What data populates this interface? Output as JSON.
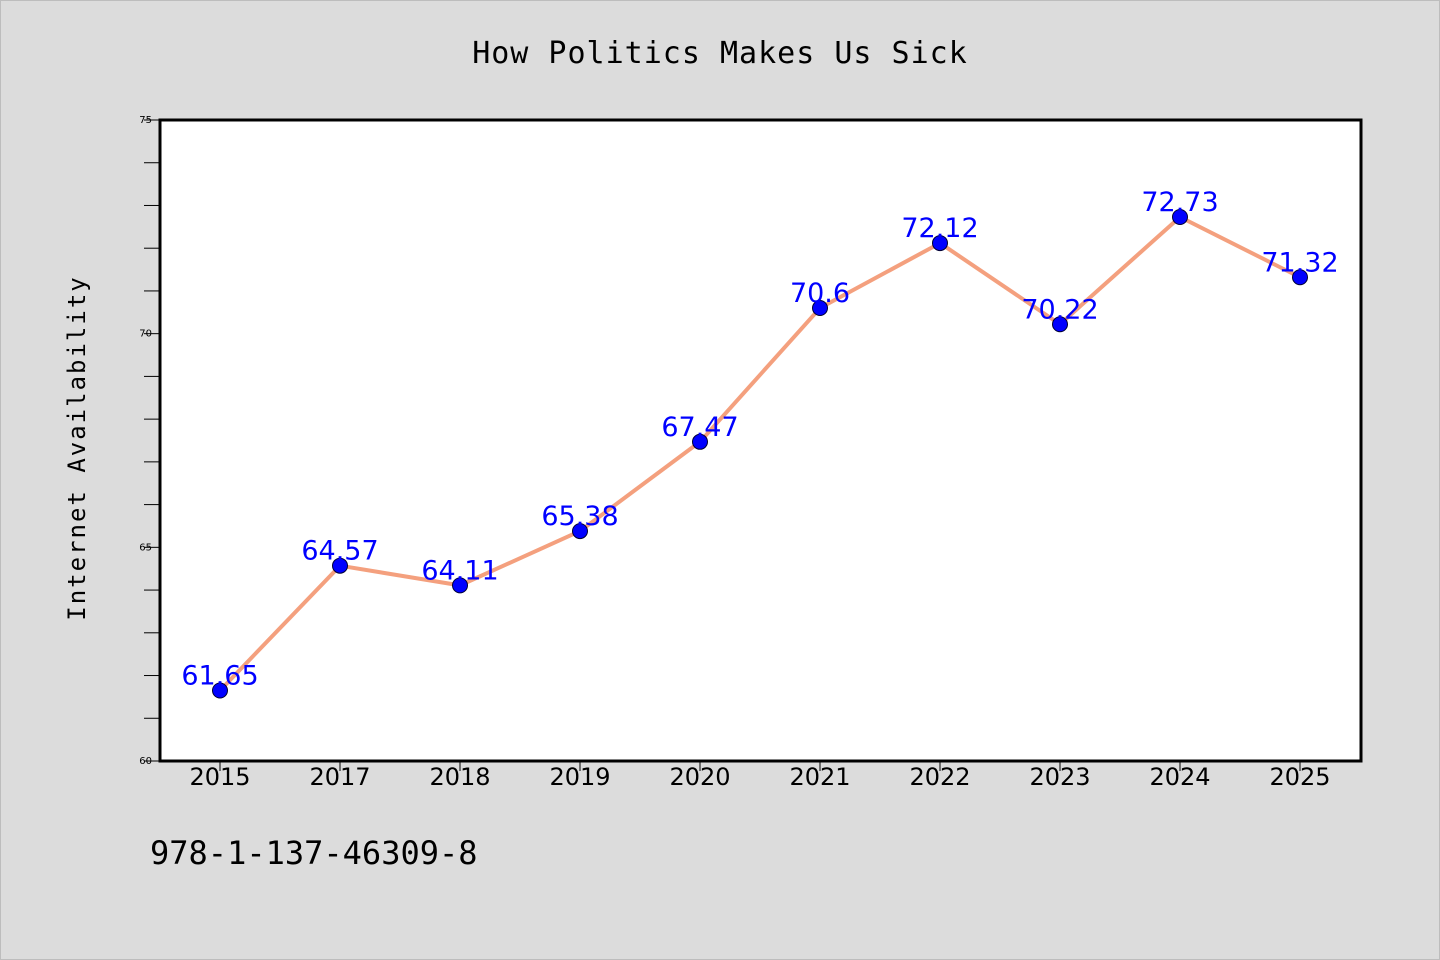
{
  "chart_data": {
    "type": "line",
    "title": "How Politics Makes Us Sick",
    "xlabel": "",
    "ylabel": "Internet Availability",
    "categories": [
      "2015",
      "2017",
      "2018",
      "2019",
      "2020",
      "2021",
      "2022",
      "2023",
      "2024",
      "2025"
    ],
    "series": [
      {
        "values": [
          61.65,
          64.57,
          64.11,
          65.38,
          67.47,
          70.6,
          72.12,
          70.22,
          72.73,
          71.32
        ],
        "data_labels": [
          "61.65",
          "64.57",
          "64.11",
          "65.38",
          "67.47",
          "70.6",
          "72.12",
          "70.22",
          "72.73",
          "71.32"
        ],
        "line_color": "#f4a07e",
        "marker_color": "#0000ff"
      }
    ],
    "ylim": [
      60,
      75
    ],
    "y_ticks": [
      60,
      65,
      70,
      75
    ],
    "grid": false,
    "legend": "none"
  },
  "footer": {
    "isbn": "978-1-137-46309-8"
  },
  "colors": {
    "background": "#dcdcdc",
    "plot_background": "#ffffff",
    "data_label": "#0000ff"
  }
}
